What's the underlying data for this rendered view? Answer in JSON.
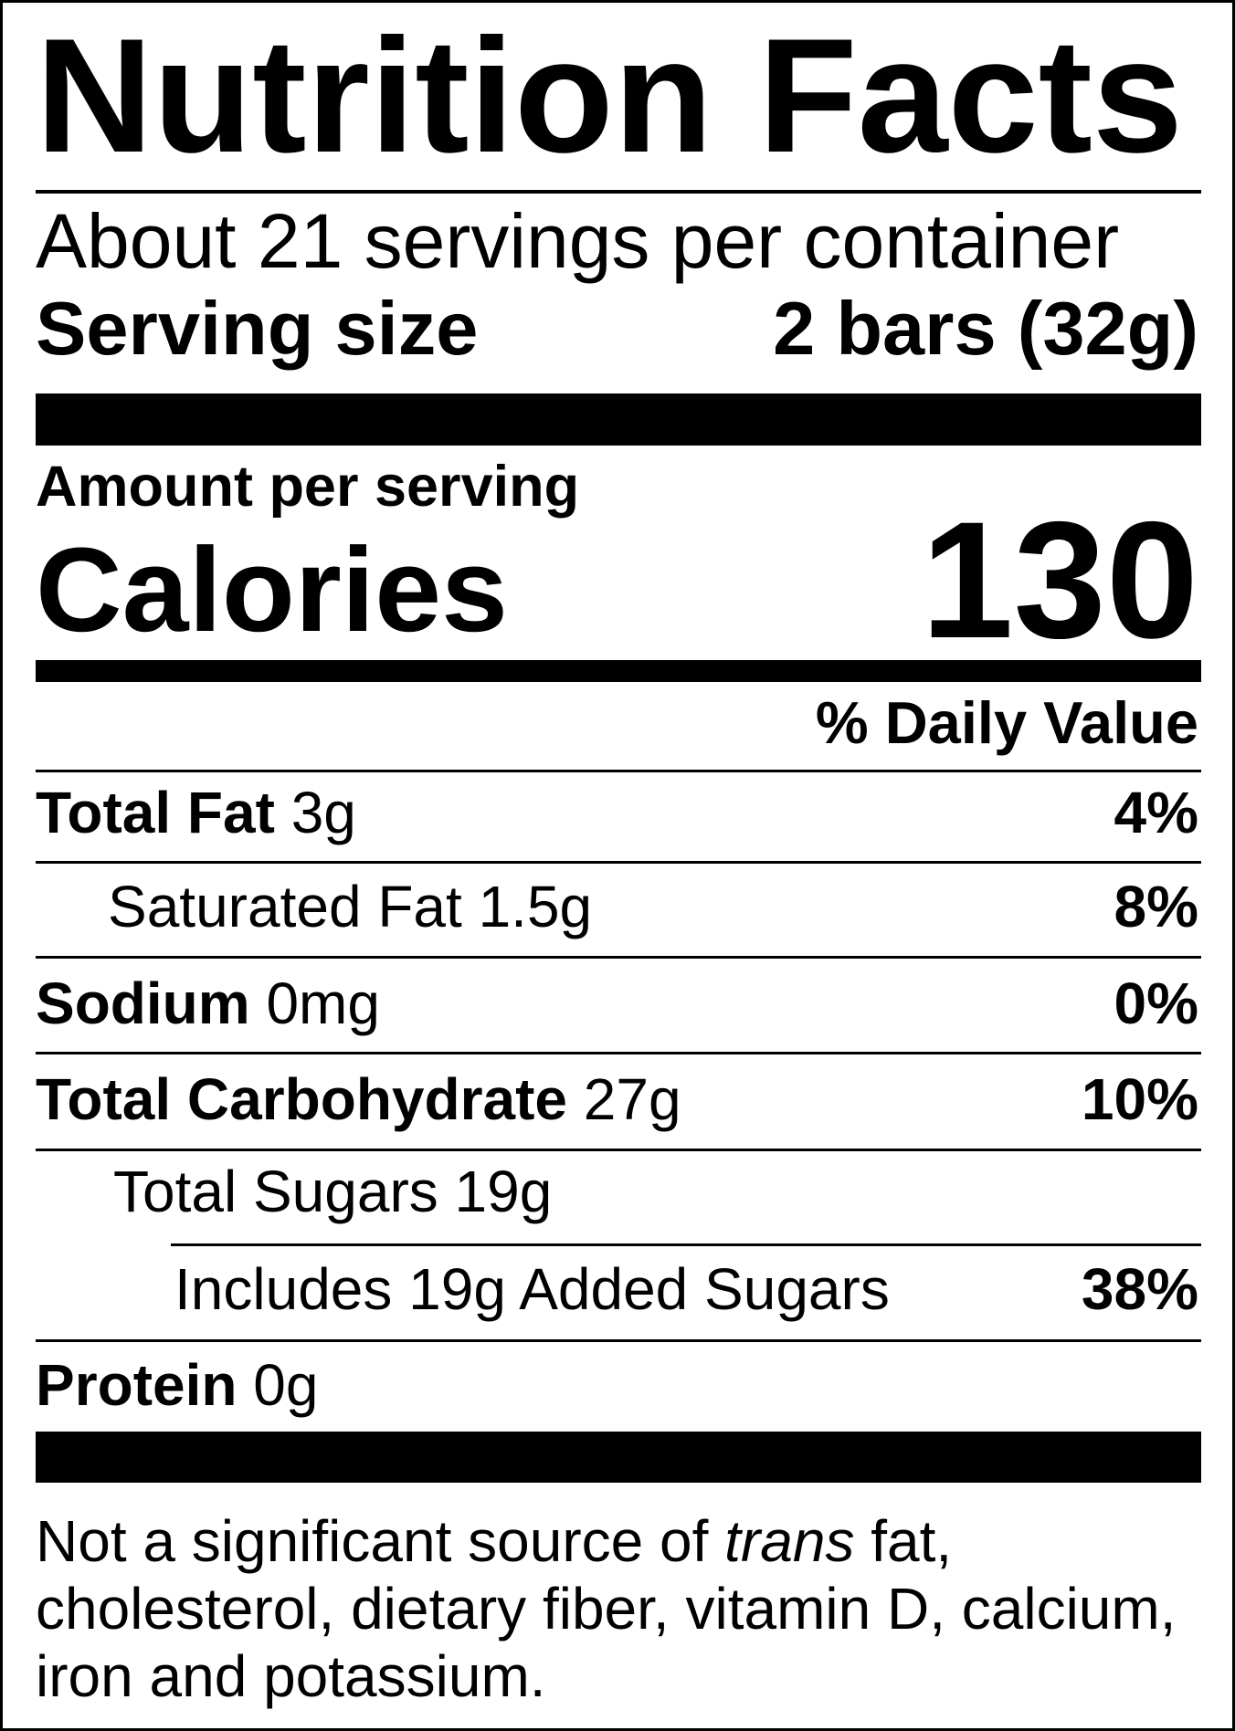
{
  "title": "Nutrition Facts",
  "servings_per_container": "About 21 servings per container",
  "serving_size": {
    "label": "Serving size",
    "value": "2 bars (32g)"
  },
  "amount_per_serving": "Amount per serving",
  "calories": {
    "label": "Calories",
    "value": "130"
  },
  "daily_value_header": "% Daily Value",
  "nutrients": [
    {
      "name": "Total Fat",
      "amount": "3g",
      "dv": "4%"
    },
    {
      "name": "Saturated Fat",
      "amount": "1.5g",
      "dv": "8%"
    },
    {
      "name": "Sodium",
      "amount": "0mg",
      "dv": "0%"
    },
    {
      "name": "Total Carbohydrate",
      "amount": "27g",
      "dv": "10%"
    },
    {
      "name": "Total Sugars",
      "amount": "19g",
      "dv": ""
    },
    {
      "name": "Includes 19g Added Sugars",
      "amount": "",
      "dv": "38%"
    },
    {
      "name": "Protein",
      "amount": "0g",
      "dv": ""
    }
  ],
  "footnote": {
    "before": "Not a significant source of ",
    "italic": "trans",
    "after": " fat, cholesterol, dietary fiber, vitamin D, calcium, iron and potassium."
  }
}
